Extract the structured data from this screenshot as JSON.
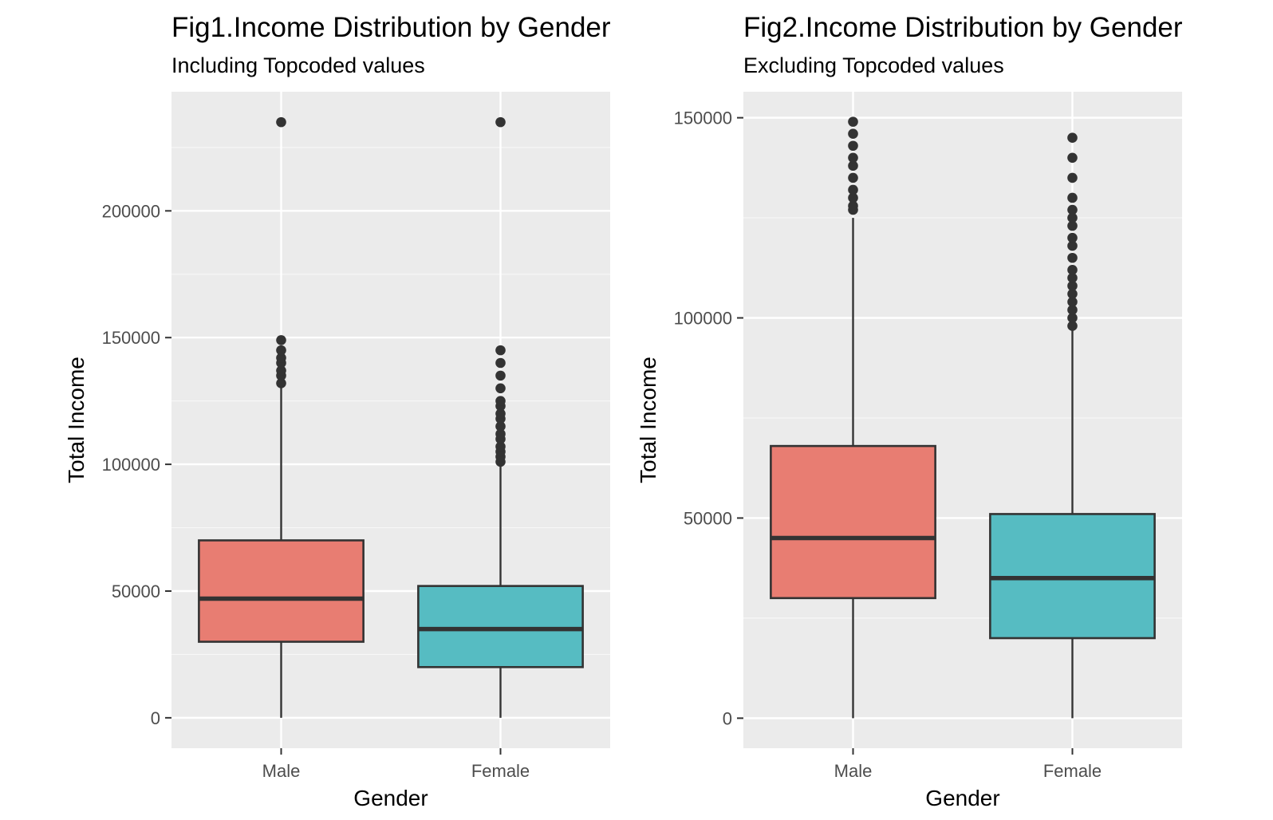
{
  "chart_data": [
    {
      "type": "box",
      "title": "Fig1.Income Distribution by Gender",
      "subtitle": "Including Topcoded values",
      "xlabel": "Gender",
      "ylabel": "Total Income",
      "categories": [
        "Male",
        "Female"
      ],
      "ylim": [
        -12000,
        247000
      ],
      "yticks": [
        0,
        50000,
        100000,
        150000,
        200000
      ],
      "ytick_labels": [
        "0",
        "50000",
        "100000",
        "150000",
        "200000"
      ],
      "grid": true,
      "legend": "none",
      "series": [
        {
          "category": "Male",
          "color": "#E87D72",
          "min": 0,
          "q1": 30000,
          "median": 47000,
          "q3": 70000,
          "max": 131000,
          "outliers": [
            132000,
            135000,
            137000,
            140000,
            142000,
            145000,
            149000,
            235000
          ]
        },
        {
          "category": "Female",
          "color": "#56BCC2",
          "min": 0,
          "q1": 20000,
          "median": 35000,
          "q3": 52000,
          "max": 100000,
          "outliers": [
            101000,
            103000,
            105000,
            107000,
            110000,
            112000,
            115000,
            118000,
            120000,
            123000,
            125000,
            130000,
            135000,
            140000,
            145000,
            235000
          ]
        }
      ]
    },
    {
      "type": "box",
      "title": "Fig2.Income Distribution by Gender",
      "subtitle": "Excluding Topcoded values",
      "xlabel": "Gender",
      "ylabel": "Total Income",
      "categories": [
        "Male",
        "Female"
      ],
      "ylim": [
        -7500,
        156500
      ],
      "yticks": [
        0,
        50000,
        100000,
        150000
      ],
      "ytick_labels": [
        "0",
        "50000",
        "100000",
        "150000"
      ],
      "grid": true,
      "legend": "none",
      "series": [
        {
          "category": "Male",
          "color": "#E87D72",
          "min": 0,
          "q1": 30000,
          "median": 45000,
          "q3": 68000,
          "max": 125000,
          "outliers": [
            127000,
            128000,
            130000,
            132000,
            135000,
            138000,
            140000,
            143000,
            146000,
            149000
          ]
        },
        {
          "category": "Female",
          "color": "#56BCC2",
          "min": 0,
          "q1": 20000,
          "median": 35000,
          "q3": 51000,
          "max": 97000,
          "outliers": [
            98000,
            100000,
            102000,
            104000,
            106000,
            108000,
            110000,
            112000,
            115000,
            118000,
            120000,
            123000,
            125000,
            127000,
            130000,
            135000,
            140000,
            145000
          ]
        }
      ]
    }
  ]
}
